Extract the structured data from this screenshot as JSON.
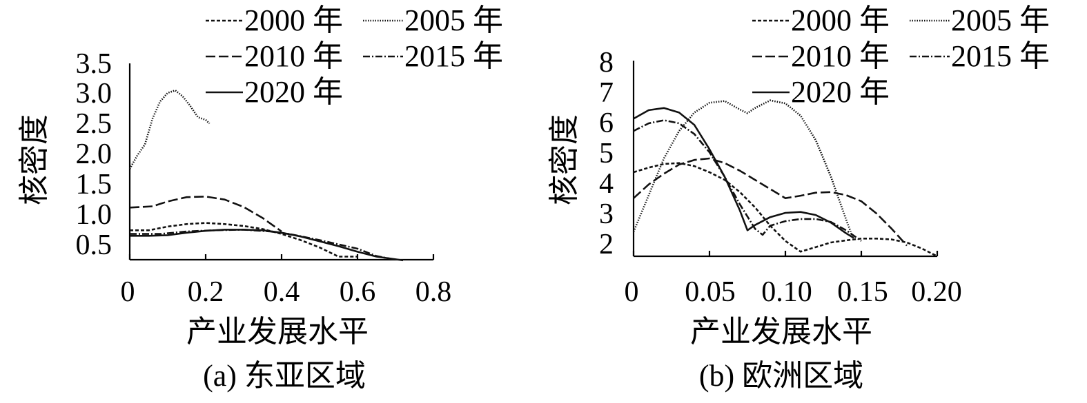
{
  "chart_data": [
    {
      "type": "line",
      "caption": "(a) 东亚区域",
      "xlabel": "产业发展水平",
      "ylabel": "核密度",
      "xlim": [
        0,
        0.8
      ],
      "ylim": [
        0.4,
        3.6
      ],
      "xticks": [
        0,
        0.2,
        0.4,
        0.6,
        0.8
      ],
      "xtick_labels": [
        "0",
        "0.2",
        "0.4",
        "0.6",
        "0.8"
      ],
      "yticks": [
        0.5,
        1.0,
        1.5,
        2.0,
        2.5,
        3.0,
        3.5
      ],
      "ytick_labels": [
        "0.5",
        "1.0",
        "1.5",
        "2.0",
        "2.5",
        "3.0",
        "3.5"
      ],
      "legend": [
        "2000 年",
        "2005 年",
        "2010 年",
        "2015 年",
        "2020 年"
      ],
      "series": [
        {
          "name": "2000 年",
          "style": "dashed",
          "x": [
            0.0,
            0.05,
            0.1,
            0.15,
            0.2,
            0.25,
            0.3,
            0.35,
            0.4,
            0.45,
            0.5,
            0.55,
            0.6
          ],
          "y": [
            0.88,
            0.88,
            0.94,
            0.98,
            1.0,
            0.98,
            0.95,
            0.9,
            0.82,
            0.72,
            0.6,
            0.45,
            0.45
          ]
        },
        {
          "name": "2005 年",
          "style": "dotted",
          "x": [
            0.0,
            0.02,
            0.04,
            0.06,
            0.08,
            0.1,
            0.12,
            0.14,
            0.16,
            0.18,
            0.2,
            0.21
          ],
          "y": [
            1.88,
            2.1,
            2.28,
            2.7,
            2.98,
            3.12,
            3.16,
            3.06,
            2.9,
            2.72,
            2.68,
            2.62
          ]
        },
        {
          "name": "2010 年",
          "style": "longdash",
          "x": [
            0.0,
            0.03,
            0.06,
            0.1,
            0.15,
            0.2,
            0.25,
            0.3,
            0.35,
            0.4
          ],
          "y": [
            1.25,
            1.26,
            1.27,
            1.35,
            1.42,
            1.43,
            1.38,
            1.26,
            1.08,
            0.86
          ]
        },
        {
          "name": "2015 年",
          "style": "dashdot",
          "x": [
            0.0,
            0.08,
            0.15,
            0.22,
            0.3,
            0.37,
            0.42,
            0.5,
            0.6,
            0.65,
            0.7
          ],
          "y": [
            0.82,
            0.82,
            0.86,
            0.88,
            0.89,
            0.86,
            0.82,
            0.72,
            0.58,
            0.46,
            0.4
          ]
        },
        {
          "name": "2020 年",
          "style": "solid",
          "x": [
            0.0,
            0.05,
            0.1,
            0.15,
            0.2,
            0.25,
            0.3,
            0.35,
            0.4,
            0.45,
            0.5,
            0.55,
            0.6,
            0.65,
            0.72
          ],
          "y": [
            0.79,
            0.79,
            0.8,
            0.84,
            0.87,
            0.89,
            0.89,
            0.88,
            0.84,
            0.78,
            0.7,
            0.62,
            0.53,
            0.45,
            0.39
          ]
        }
      ]
    },
    {
      "type": "line",
      "caption": "(b) 欧洲区域",
      "xlabel": "产业发展水平",
      "ylabel": "核密度",
      "xlim": [
        0,
        0.2
      ],
      "ylim": [
        1.6,
        8.0
      ],
      "xticks": [
        0,
        0.05,
        0.1,
        0.15,
        0.2
      ],
      "xtick_labels": [
        "0",
        "0.05",
        "0.10",
        "0.15",
        "0.20"
      ],
      "yticks": [
        2,
        3,
        4,
        5,
        6,
        7,
        8
      ],
      "ytick_labels": [
        "2",
        "3",
        "4",
        "5",
        "6",
        "7",
        "8"
      ],
      "legend": [
        "2000 年",
        "2005 年",
        "2010 年",
        "2015 年",
        "2020 年"
      ],
      "series": [
        {
          "name": "2000 年",
          "style": "dashed",
          "x": [
            0.0,
            0.01,
            0.02,
            0.03,
            0.04,
            0.05,
            0.06,
            0.07,
            0.08,
            0.09,
            0.1,
            0.11,
            0.12,
            0.13,
            0.14,
            0.15,
            0.16,
            0.17,
            0.18,
            0.19,
            0.2
          ],
          "y": [
            4.35,
            4.5,
            4.62,
            4.65,
            4.55,
            4.35,
            4.1,
            3.7,
            3.2,
            2.6,
            2.1,
            1.75,
            1.9,
            2.05,
            2.12,
            2.18,
            2.18,
            2.15,
            2.05,
            1.85,
            1.6
          ]
        },
        {
          "name": "2005 年",
          "style": "dotted",
          "x": [
            0.0,
            0.01,
            0.02,
            0.03,
            0.04,
            0.05,
            0.06,
            0.07,
            0.075,
            0.08,
            0.09,
            0.1,
            0.11,
            0.12,
            0.13,
            0.14,
            0.143
          ],
          "y": [
            2.4,
            3.6,
            4.8,
            5.7,
            6.3,
            6.62,
            6.68,
            6.4,
            6.28,
            6.45,
            6.7,
            6.6,
            6.2,
            5.4,
            4.2,
            2.8,
            2.4
          ]
        },
        {
          "name": "2010 年",
          "style": "longdash",
          "x": [
            0.0,
            0.01,
            0.02,
            0.03,
            0.04,
            0.05,
            0.06,
            0.07,
            0.08,
            0.09,
            0.1,
            0.11,
            0.12,
            0.13,
            0.14,
            0.15,
            0.16,
            0.17,
            0.18
          ],
          "y": [
            3.5,
            3.95,
            4.3,
            4.6,
            4.75,
            4.8,
            4.65,
            4.4,
            4.1,
            3.8,
            3.5,
            3.58,
            3.68,
            3.7,
            3.6,
            3.4,
            3.0,
            2.5,
            1.95
          ]
        },
        {
          "name": "2015 年",
          "style": "dashdot",
          "x": [
            0.0,
            0.01,
            0.02,
            0.03,
            0.04,
            0.05,
            0.06,
            0.07,
            0.08,
            0.085,
            0.09,
            0.1,
            0.11,
            0.12,
            0.13,
            0.14,
            0.15
          ],
          "y": [
            5.7,
            5.95,
            6.05,
            5.95,
            5.6,
            5.0,
            4.2,
            3.3,
            2.5,
            2.3,
            2.6,
            2.75,
            2.82,
            2.82,
            2.72,
            2.45,
            2.1
          ]
        },
        {
          "name": "2020 年",
          "style": "solid",
          "x": [
            0.0,
            0.01,
            0.02,
            0.03,
            0.04,
            0.05,
            0.06,
            0.07,
            0.075,
            0.08,
            0.09,
            0.1,
            0.11,
            0.12,
            0.13,
            0.14,
            0.145
          ],
          "y": [
            6.1,
            6.38,
            6.45,
            6.3,
            5.9,
            5.1,
            4.2,
            3.1,
            2.45,
            2.62,
            2.88,
            3.02,
            3.05,
            2.95,
            2.7,
            2.35,
            2.2
          ]
        }
      ]
    }
  ]
}
